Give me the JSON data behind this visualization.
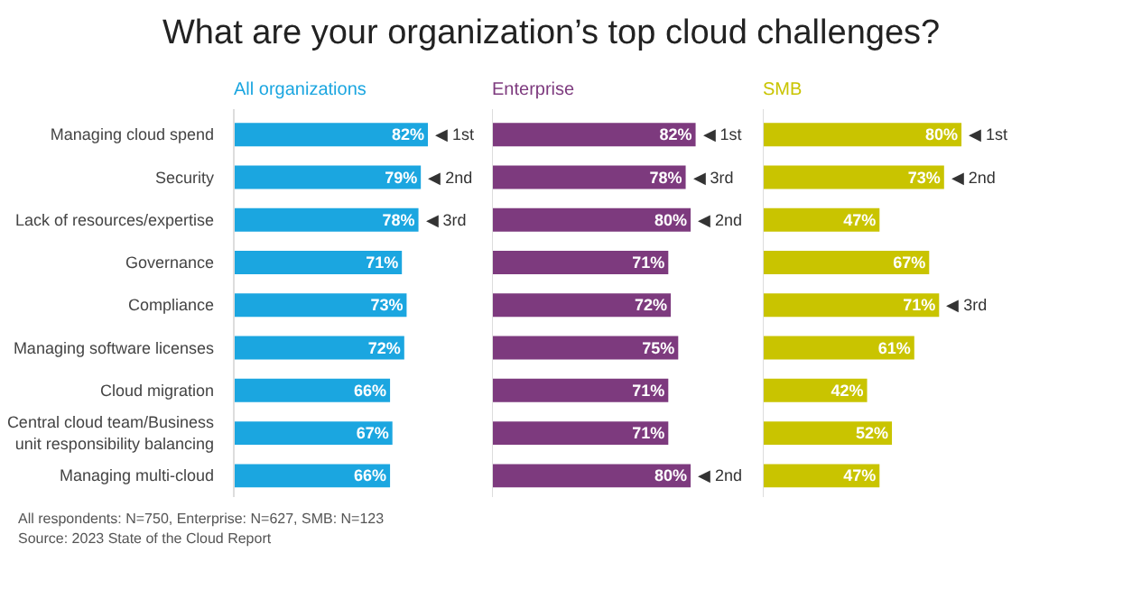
{
  "chart_data": [
    {
      "type": "bar",
      "orientation": "horizontal",
      "title": "What are your organization’s top cloud challenges?",
      "subtitle": "All organizations",
      "categories": [
        "Managing cloud spend",
        "Security",
        "Lack of resources/expertise",
        "Governance",
        "Compliance",
        "Managing software licenses",
        "Cloud migration",
        "Central cloud team/Business unit responsibility balancing",
        "Managing multi-cloud"
      ],
      "values": [
        82,
        79,
        78,
        71,
        73,
        72,
        66,
        67,
        66
      ],
      "color": "#1ba6e0",
      "value_labels": [
        "82%",
        "79%",
        "78%",
        "71%",
        "73%",
        "72%",
        "66%",
        "67%",
        "66%"
      ],
      "tick_labels": "y",
      "grid": false,
      "annotations": [
        {
          "text": "◀ 1st",
          "x": 82,
          "y": "Managing cloud spend"
        },
        {
          "text": "◀ 2nd",
          "x": 79,
          "y": "Security"
        },
        {
          "text": "◀ 3rd",
          "x": 78,
          "y": "Lack of resources/expertise"
        },
        "All respondents: N=750, Enterprise: N=627, SMB: N=123",
        "Source: 2023 State of the Cloud Report"
      ]
    },
    {
      "type": "bar",
      "orientation": "horizontal",
      "subtitle": "Enterprise",
      "categories": [
        "Managing cloud spend",
        "Security",
        "Lack of resources/expertise",
        "Governance",
        "Compliance",
        "Managing software licenses",
        "Cloud migration",
        "Central cloud team/Business unit responsibility balancing",
        "Managing multi-cloud"
      ],
      "values": [
        82,
        78,
        80,
        71,
        72,
        75,
        71,
        71,
        80
      ],
      "color": "#7d3a7e",
      "value_labels": [
        "82%",
        "78%",
        "80%",
        "71%",
        "72%",
        "75%",
        "71%",
        "71%",
        "80%"
      ],
      "tick_labels": false,
      "grid": false,
      "annotations": [
        {
          "text": "◀ 1st",
          "x": 82,
          "y": "Managing cloud spend"
        },
        {
          "text": "◀ 3rd",
          "x": 78,
          "y": "Security"
        },
        {
          "text": "◀ 2nd",
          "x": 80,
          "y": "Lack of resources/expertise"
        },
        {
          "text": "◀ 2nd",
          "x": 80,
          "y": "Managing multi-cloud"
        }
      ]
    },
    {
      "type": "bar",
      "orientation": "horizontal",
      "subtitle": "SMB",
      "categories": [
        "Managing cloud spend",
        "Security",
        "Lack of resources/expertise",
        "Governance",
        "Compliance",
        "Managing software licenses",
        "Cloud migration",
        "Central cloud team/Business unit responsibility balancing",
        "Managing multi-cloud"
      ],
      "values": [
        80,
        73,
        47,
        67,
        71,
        61,
        42,
        52,
        47
      ],
      "color": "#c9c400",
      "value_labels": [
        "80%",
        "73%",
        "47%",
        "67%",
        "71%",
        "61%",
        "42%",
        "52%",
        "47%"
      ],
      "tick_labels": false,
      "grid": false,
      "annotations": [
        {
          "text": "◀ 1st",
          "x": 80,
          "y": "Managing cloud spend"
        },
        {
          "text": "◀ 2nd",
          "x": 73,
          "y": "Security"
        },
        {
          "text": "◀ 3rd",
          "x": 71,
          "y": "Compliance"
        }
      ]
    }
  ]
}
